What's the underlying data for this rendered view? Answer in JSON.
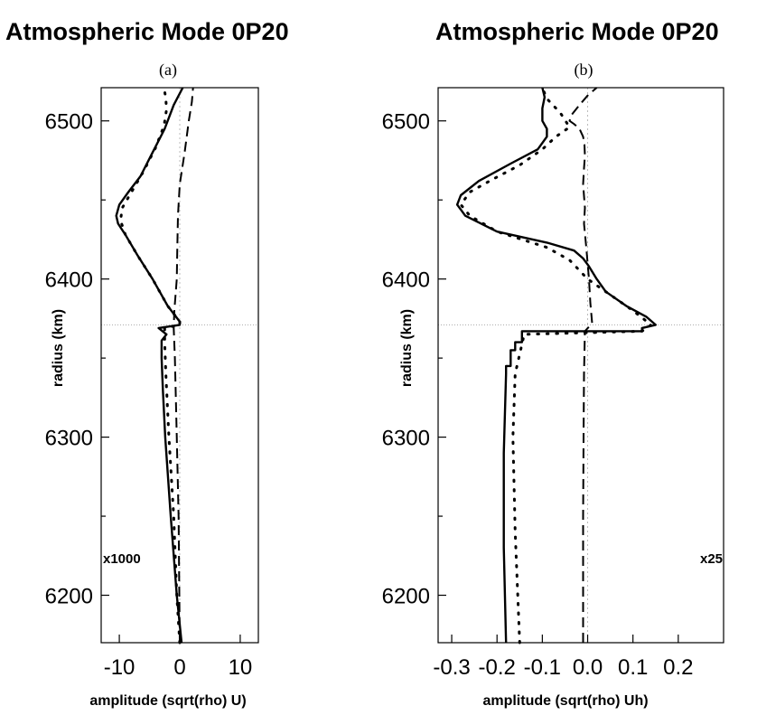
{
  "chart_data": [
    {
      "type": "line",
      "title": "Atmospheric Mode 0P20",
      "subtitle": "(a)",
      "xlabel": "amplitude (sqrt(rho) U)",
      "ylabel": "radius (km)",
      "xlim": [
        -13,
        13
      ],
      "ylim": [
        6170,
        6521
      ],
      "xticks": [
        "-10",
        "0",
        "10"
      ],
      "yticks": [
        "6200",
        "6300",
        "6400",
        "6500"
      ],
      "annotation": "x1000",
      "reference_radius": 6371,
      "series": [
        {
          "style": "solid",
          "x": [
            0.3,
            -0.5,
            -1.5,
            -2.4,
            -2.8,
            -3.0,
            -3.0,
            -2.2,
            -3.5,
            0.0,
            0.0,
            -2.0,
            -4.5,
            -7.0,
            -9.0,
            -10.2,
            -10.5,
            -10.0,
            -8.5,
            -6.5,
            -4.5,
            -2.5,
            -1.0,
            0.5
          ],
          "y": [
            6170,
            6200,
            6250,
            6300,
            6330,
            6350,
            6361,
            6365,
            6369,
            6371,
            6373,
            6383,
            6400,
            6415,
            6428,
            6435,
            6440,
            6447,
            6455,
            6465,
            6480,
            6495,
            6510,
            6521
          ]
        },
        {
          "style": "dotted",
          "x": [
            0.0,
            -0.5,
            -1.0,
            -1.8,
            -2.3,
            -2.5,
            -2.5,
            0.0,
            0.0,
            -2.0,
            -4.5,
            -7.0,
            -9.0,
            -9.8,
            -9.5,
            -8.0,
            -6.0,
            -4.0,
            -2.6,
            -2.2,
            -2.3,
            -2.6
          ],
          "y": [
            6170,
            6200,
            6250,
            6300,
            6340,
            6360,
            6369,
            6371,
            6373,
            6383,
            6400,
            6415,
            6428,
            6437,
            6445,
            6455,
            6468,
            6483,
            6497,
            6507,
            6514,
            6521
          ]
        },
        {
          "style": "dashed",
          "x": [
            0.0,
            -0.2,
            -0.5,
            -0.8,
            -1.0,
            -0.9,
            -0.5,
            -0.4,
            -0.3,
            0.0,
            0.8,
            1.5,
            2.0,
            2.2
          ],
          "y": [
            6170,
            6250,
            6300,
            6350,
            6369,
            6380,
            6400,
            6420,
            6440,
            6460,
            6480,
            6500,
            6512,
            6521
          ]
        }
      ]
    },
    {
      "type": "line",
      "title": "Atmospheric Mode 0P20",
      "subtitle": "(b)",
      "xlabel": "amplitude (sqrt(rho) Uh)",
      "ylabel": "radius (km)",
      "xlim": [
        -0.33,
        0.3
      ],
      "ylim": [
        6170,
        6521
      ],
      "xticks": [
        "-0.3",
        "-0.2",
        "-0.1",
        "0.0",
        "0.1",
        "0.2"
      ],
      "yticks": [
        "6200",
        "6300",
        "6400",
        "6500"
      ],
      "annotation": "x25",
      "reference_radius": 6371,
      "series": [
        {
          "style": "solid",
          "x": [
            -0.18,
            -0.185,
            -0.185,
            -0.18,
            -0.18,
            -0.17,
            -0.17,
            -0.16,
            -0.16,
            -0.145,
            -0.145,
            0.12,
            0.12,
            0.15,
            0.13,
            0.085,
            0.04,
            0.02,
            0.003,
            -0.01,
            -0.03,
            -0.09,
            -0.2,
            -0.27,
            -0.288,
            -0.28,
            -0.24,
            -0.17,
            -0.11,
            -0.09,
            -0.09,
            -0.1,
            -0.1,
            -0.095,
            -0.1
          ],
          "y": [
            6170,
            6230,
            6290,
            6340,
            6345,
            6345,
            6355,
            6355,
            6360,
            6360,
            6367,
            6367,
            6369,
            6371,
            6376,
            6383,
            6392,
            6400,
            6408,
            6413,
            6418,
            6423,
            6430,
            6440,
            6447,
            6453,
            6462,
            6473,
            6482,
            6490,
            6495,
            6500,
            6508,
            6515,
            6521
          ]
        },
        {
          "style": "dotted",
          "x": [
            -0.15,
            -0.16,
            -0.165,
            -0.16,
            -0.14,
            0.12,
            0.14,
            0.1,
            0.05,
            0.0,
            -0.04,
            -0.09,
            -0.2,
            -0.26,
            -0.28,
            -0.26,
            -0.21,
            -0.15,
            -0.1,
            -0.07,
            -0.04,
            -0.06,
            -0.09,
            -0.1
          ],
          "y": [
            6170,
            6240,
            6300,
            6340,
            6365,
            6367,
            6371,
            6380,
            6390,
            6400,
            6412,
            6420,
            6430,
            6440,
            6447,
            6455,
            6463,
            6472,
            6482,
            6490,
            6496,
            6505,
            6514,
            6521
          ]
        },
        {
          "style": "dashed",
          "x": [
            -0.01,
            -0.01,
            -0.009,
            -0.008,
            -0.006,
            0.01,
            0.006,
            0.004,
            0.003,
            -0.003,
            -0.008,
            -0.006,
            -0.01,
            -0.008,
            -0.006,
            -0.007,
            -0.01,
            -0.018,
            -0.03,
            -0.04,
            -0.035,
            -0.018,
            0.0,
            0.02
          ],
          "y": [
            6170,
            6250,
            6300,
            6340,
            6367,
            6372,
            6385,
            6395,
            6400,
            6420,
            6435,
            6445,
            6460,
            6470,
            6478,
            6485,
            6490,
            6495,
            6498,
            6500,
            6504,
            6510,
            6516,
            6521
          ]
        }
      ]
    }
  ]
}
